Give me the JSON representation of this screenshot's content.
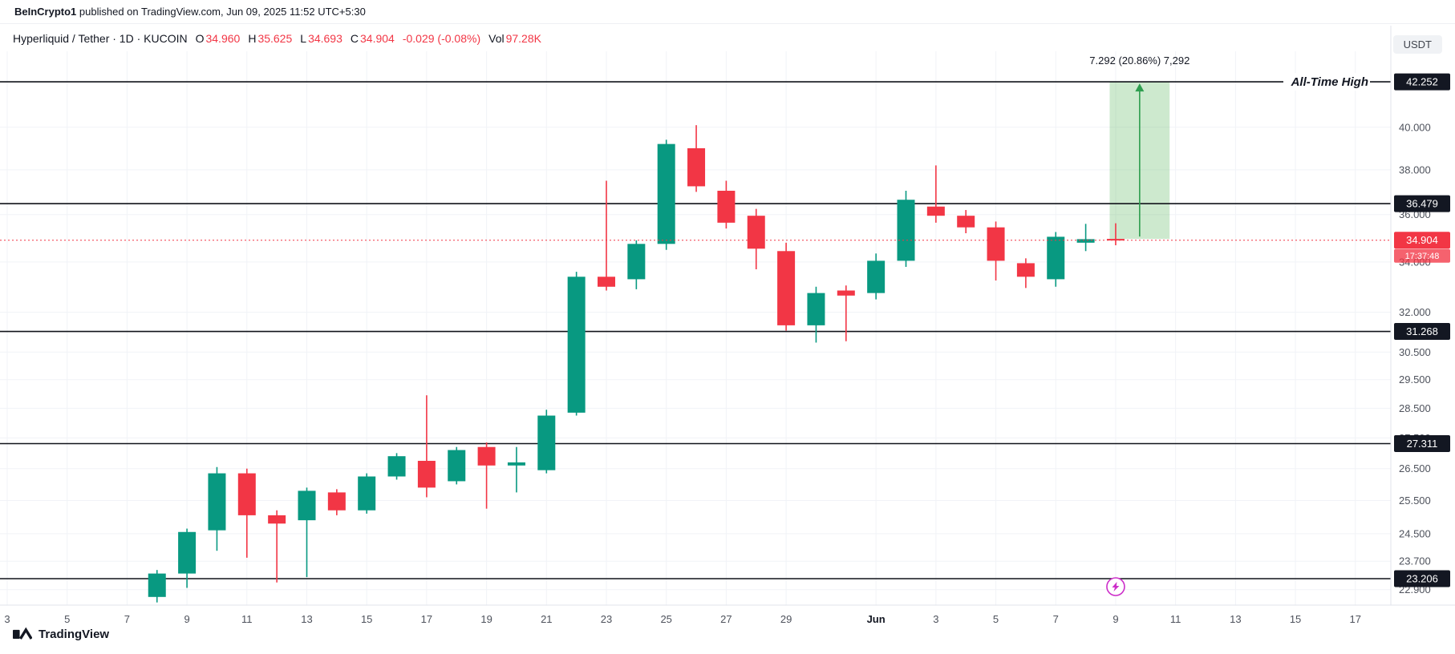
{
  "attribution": {
    "author": "BeInCrypto1",
    "text": " published on TradingView.com, Jun 09, 2025 11:52 UTC+5:30"
  },
  "header": {
    "title": "Hyperliquid / Tether · 1D · KUCOIN",
    "o_label": "O",
    "o": "34.960",
    "h_label": "H",
    "h": "35.625",
    "l_label": "L",
    "l": "34.693",
    "c_label": "C",
    "c": "34.904",
    "change": "-0.029 (-0.08%)",
    "vol_label": "Vol",
    "vol": "97.28K"
  },
  "currency_badge": "USDT",
  "footer": {
    "logo_text": "TradingView"
  },
  "chart_data": {
    "type": "candlestick",
    "symbol": "Hyperliquid / Tether (HYPE/USDT)",
    "exchange": "KUCOIN",
    "interval": "1D",
    "colors": {
      "up": "#089981",
      "down": "#F23645",
      "level": "#11131a",
      "grid": "#f1f3f7",
      "axis_text": "#4e525c",
      "badge_bg": "#131722",
      "badge_text": "#ffffff",
      "current": "#F23645",
      "projection_fill": "rgba(76,175,80,0.28)",
      "projection_arrow": "#2e9e4f",
      "marker": "#cc2ec9"
    },
    "price_ticks": [
      {
        "label": "40.000",
        "value": 40.0
      },
      {
        "label": "38.000",
        "value": 38.0
      },
      {
        "label": "36.000",
        "value": 36.0
      },
      {
        "label": "34.000",
        "value": 34.0
      },
      {
        "label": "32.000",
        "value": 32.0
      },
      {
        "label": "30.500",
        "value": 30.5
      },
      {
        "label": "29.500",
        "value": 29.5
      },
      {
        "label": "28.500",
        "value": 28.5
      },
      {
        "label": "27.500",
        "value": 27.5
      },
      {
        "label": "26.500",
        "value": 26.5
      },
      {
        "label": "25.500",
        "value": 25.5
      },
      {
        "label": "24.500",
        "value": 24.5
      },
      {
        "label": "23.700",
        "value": 23.7
      },
      {
        "label": "22.900",
        "value": 22.9
      }
    ],
    "time_ticks": [
      {
        "label": "3",
        "day": 0
      },
      {
        "label": "5",
        "day": 2
      },
      {
        "label": "7",
        "day": 4
      },
      {
        "label": "9",
        "day": 6
      },
      {
        "label": "11",
        "day": 8
      },
      {
        "label": "13",
        "day": 10
      },
      {
        "label": "15",
        "day": 12
      },
      {
        "label": "17",
        "day": 14
      },
      {
        "label": "19",
        "day": 16
      },
      {
        "label": "21",
        "day": 18
      },
      {
        "label": "23",
        "day": 20
      },
      {
        "label": "25",
        "day": 22
      },
      {
        "label": "27",
        "day": 24
      },
      {
        "label": "29",
        "day": 26
      },
      {
        "label": "Jun",
        "day": 29,
        "bold": true
      },
      {
        "label": "3",
        "day": 31
      },
      {
        "label": "5",
        "day": 33
      },
      {
        "label": "7",
        "day": 35
      },
      {
        "label": "9",
        "day": 37
      },
      {
        "label": "11",
        "day": 39
      },
      {
        "label": "13",
        "day": 41
      },
      {
        "label": "15",
        "day": 43
      },
      {
        "label": "17",
        "day": 45
      }
    ],
    "levels": [
      {
        "label": "42.252",
        "value": 42.252
      },
      {
        "label": "36.479",
        "value": 36.479
      },
      {
        "label": "31.268",
        "value": 31.268
      },
      {
        "label": "27.311",
        "value": 27.311
      },
      {
        "label": "23.206",
        "value": 23.206
      }
    ],
    "ath_label": "All-Time High",
    "current_price": {
      "label": "34.904",
      "value": 34.904,
      "countdown": "17:37:48"
    },
    "projection": {
      "label": "7.292 (20.86%) 7,292",
      "from": 34.96,
      "to": 42.252,
      "day_start": 36.8,
      "day_end": 38.8,
      "arrow_day": 37.8
    },
    "marker": {
      "type": "lightning",
      "day": 37
    },
    "candles": [
      {
        "t": "May 8",
        "day": 5,
        "o": 22.7,
        "h": 23.45,
        "l": 22.55,
        "c": 23.35
      },
      {
        "t": "May 9",
        "day": 6,
        "o": 23.35,
        "h": 24.65,
        "l": 22.95,
        "c": 24.55
      },
      {
        "t": "May 10",
        "day": 7,
        "o": 24.6,
        "h": 26.55,
        "l": 24.0,
        "c": 26.35
      },
      {
        "t": "May 11",
        "day": 8,
        "o": 26.35,
        "h": 26.5,
        "l": 23.8,
        "c": 25.05
      },
      {
        "t": "May 12",
        "day": 9,
        "o": 25.05,
        "h": 25.2,
        "l": 23.1,
        "c": 24.8
      },
      {
        "t": "May 13",
        "day": 10,
        "o": 24.9,
        "h": 25.9,
        "l": 23.25,
        "c": 25.8
      },
      {
        "t": "May 14",
        "day": 11,
        "o": 25.75,
        "h": 25.85,
        "l": 25.05,
        "c": 25.2
      },
      {
        "t": "May 15",
        "day": 12,
        "o": 25.2,
        "h": 26.35,
        "l": 25.1,
        "c": 26.25
      },
      {
        "t": "May 16",
        "day": 13,
        "o": 26.25,
        "h": 27.0,
        "l": 26.15,
        "c": 26.9
      },
      {
        "t": "May 17",
        "day": 14,
        "o": 26.75,
        "h": 28.95,
        "l": 25.6,
        "c": 25.9
      },
      {
        "t": "May 18",
        "day": 15,
        "o": 26.1,
        "h": 27.2,
        "l": 26.0,
        "c": 27.1
      },
      {
        "t": "May 19",
        "day": 16,
        "o": 27.2,
        "h": 27.35,
        "l": 25.25,
        "c": 26.6
      },
      {
        "t": "May 20",
        "day": 17,
        "o": 26.6,
        "h": 27.2,
        "l": 25.75,
        "c": 26.7
      },
      {
        "t": "May 21",
        "day": 18,
        "o": 26.45,
        "h": 28.45,
        "l": 26.35,
        "c": 28.25
      },
      {
        "t": "May 22",
        "day": 19,
        "o": 28.35,
        "h": 33.6,
        "l": 28.25,
        "c": 33.4
      },
      {
        "t": "May 23",
        "day": 20,
        "o": 33.4,
        "h": 37.5,
        "l": 32.85,
        "c": 33.0
      },
      {
        "t": "May 24",
        "day": 21,
        "o": 33.3,
        "h": 34.9,
        "l": 32.9,
        "c": 34.75
      },
      {
        "t": "May 25",
        "day": 22,
        "o": 34.75,
        "h": 39.4,
        "l": 34.5,
        "c": 39.2
      },
      {
        "t": "May 26",
        "day": 23,
        "o": 39.0,
        "h": 40.1,
        "l": 37.0,
        "c": 37.25
      },
      {
        "t": "May 27",
        "day": 24,
        "o": 37.05,
        "h": 37.5,
        "l": 35.4,
        "c": 35.65
      },
      {
        "t": "May 28",
        "day": 25,
        "o": 35.95,
        "h": 36.25,
        "l": 33.7,
        "c": 34.55
      },
      {
        "t": "May 29",
        "day": 26,
        "o": 34.45,
        "h": 34.8,
        "l": 31.3,
        "c": 31.5
      },
      {
        "t": "May 30",
        "day": 27,
        "o": 31.5,
        "h": 33.0,
        "l": 30.85,
        "c": 32.75
      },
      {
        "t": "May 31",
        "day": 28,
        "o": 32.85,
        "h": 33.05,
        "l": 30.9,
        "c": 32.65
      },
      {
        "t": "Jun 1",
        "day": 29,
        "o": 32.75,
        "h": 34.35,
        "l": 32.5,
        "c": 34.05
      },
      {
        "t": "Jun 2",
        "day": 30,
        "o": 34.05,
        "h": 37.05,
        "l": 33.8,
        "c": 36.65
      },
      {
        "t": "Jun 3",
        "day": 31,
        "o": 36.35,
        "h": 38.2,
        "l": 35.65,
        "c": 35.95
      },
      {
        "t": "Jun 4",
        "day": 32,
        "o": 35.95,
        "h": 36.2,
        "l": 35.2,
        "c": 35.45
      },
      {
        "t": "Jun 5",
        "day": 33,
        "o": 35.45,
        "h": 35.7,
        "l": 33.25,
        "c": 34.05
      },
      {
        "t": "Jun 6",
        "day": 34,
        "o": 33.95,
        "h": 34.15,
        "l": 32.95,
        "c": 33.4
      },
      {
        "t": "Jun 7",
        "day": 35,
        "o": 33.3,
        "h": 35.25,
        "l": 33.0,
        "c": 35.05
      },
      {
        "t": "Jun 8",
        "day": 36,
        "o": 34.8,
        "h": 35.6,
        "l": 34.45,
        "c": 34.95
      },
      {
        "t": "Jun 9",
        "day": 37,
        "o": 34.96,
        "h": 35.625,
        "l": 34.693,
        "c": 34.904
      }
    ]
  }
}
